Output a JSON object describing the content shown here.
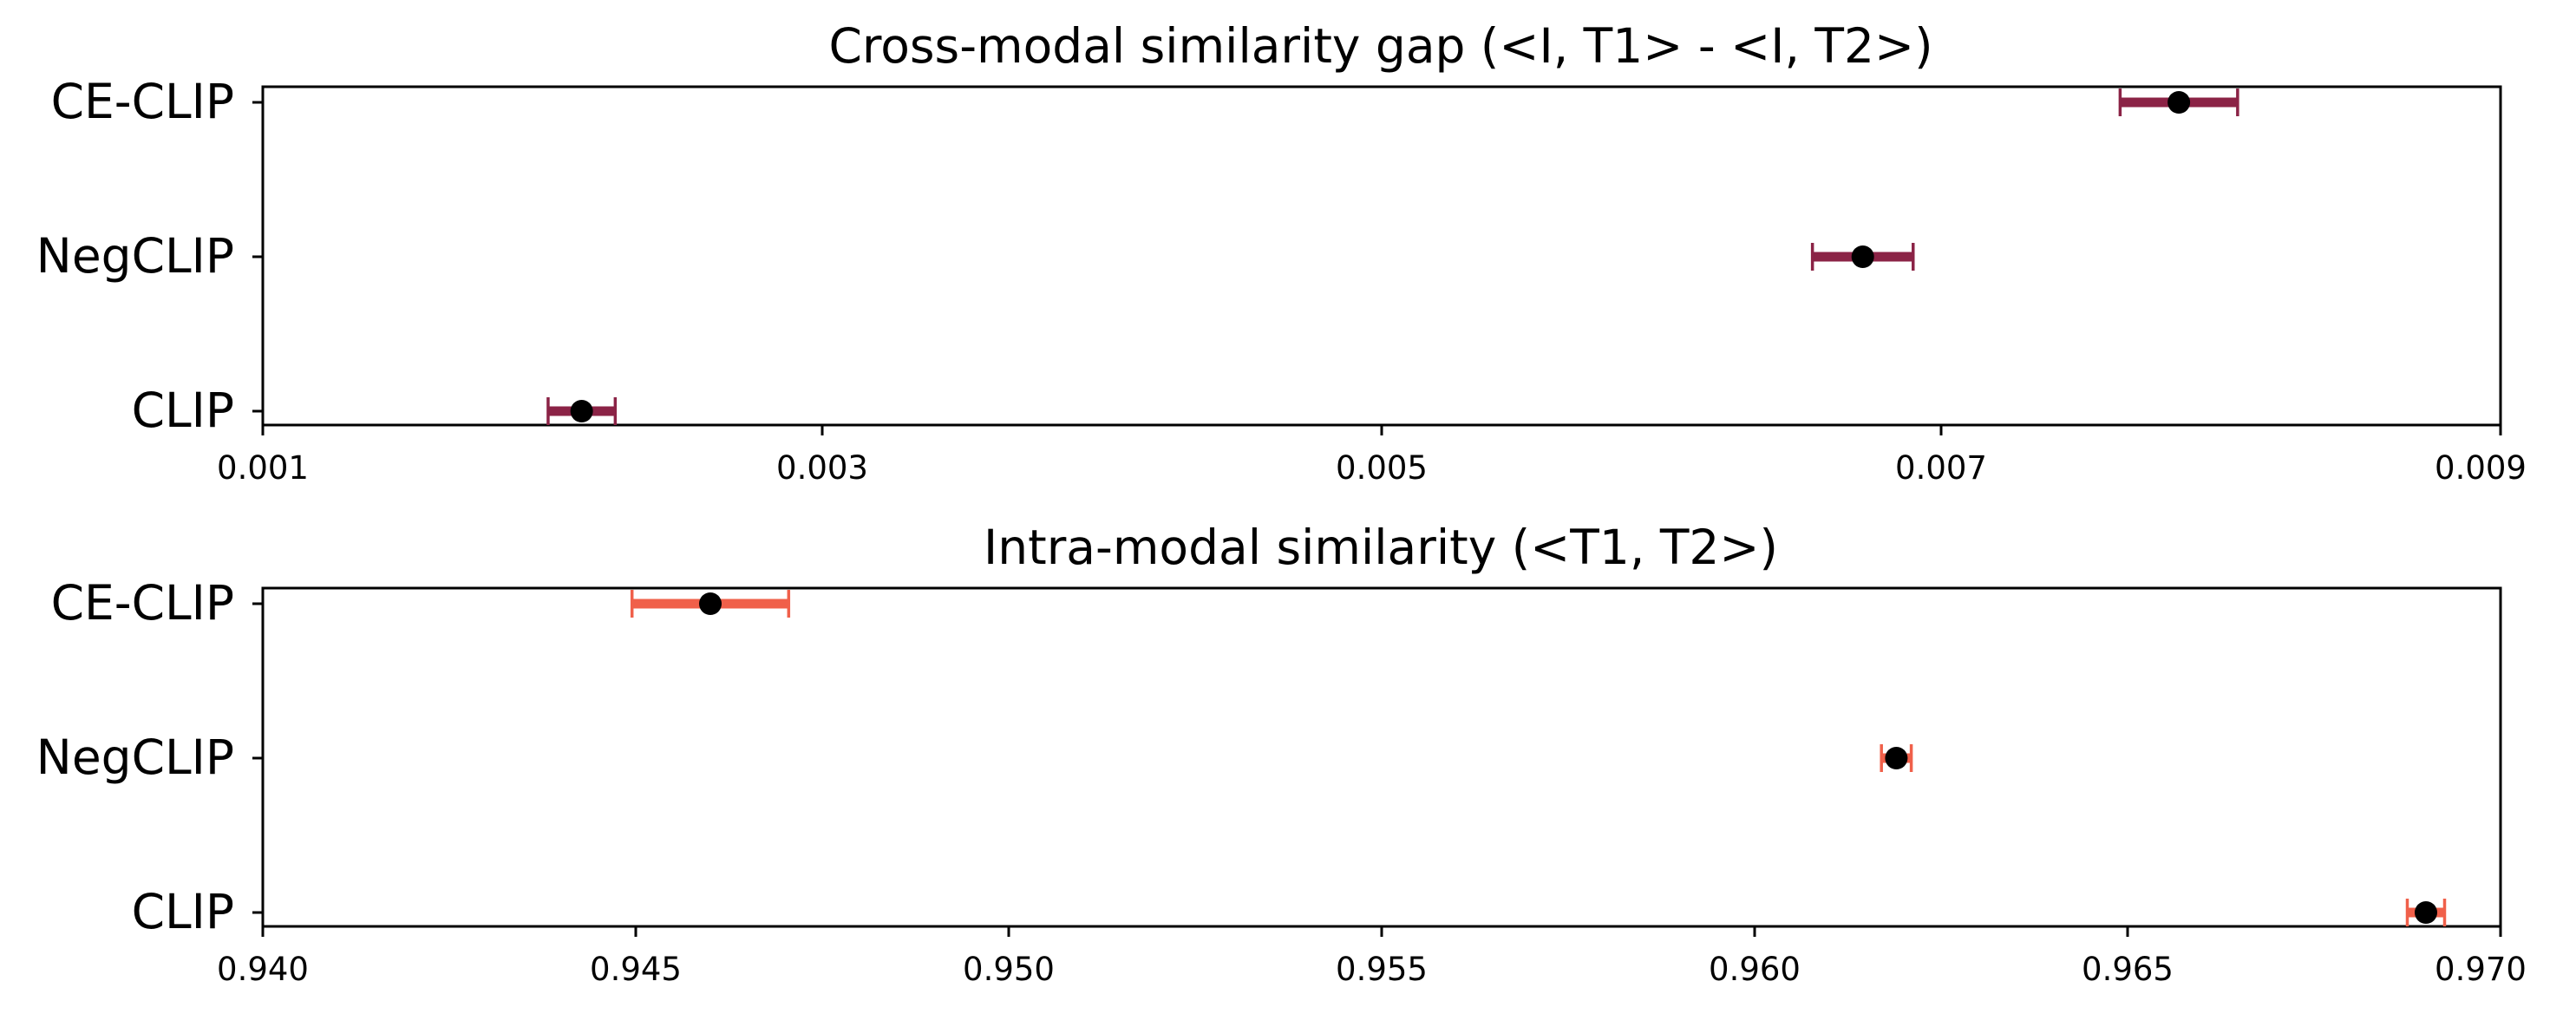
{
  "chart_data": [
    {
      "type": "errorbar",
      "title": "Cross-modal similarity gap (<I, T1> - <I, T2>)",
      "xlim": [
        0.001,
        0.009
      ],
      "xticks": [
        "0.001",
        "0.003",
        "0.005",
        "0.007",
        "0.009"
      ],
      "categories": [
        "CE-CLIP",
        "NegCLIP",
        "CLIP"
      ],
      "values": [
        0.00785,
        0.00672,
        0.00214
      ],
      "errors": [
        0.00021,
        0.00018,
        0.00012
      ],
      "bar_color": "#8b2346",
      "point_color": "#000000",
      "grid": false
    },
    {
      "type": "errorbar",
      "title": "Intra-modal similarity (<T1, T2>)",
      "xlim": [
        0.94,
        0.97
      ],
      "xticks": [
        "0.940",
        "0.945",
        "0.950",
        "0.955",
        "0.960",
        "0.965",
        "0.970"
      ],
      "categories": [
        "CE-CLIP",
        "NegCLIP",
        "CLIP"
      ],
      "values": [
        0.946,
        0.9619,
        0.969
      ],
      "errors": [
        0.00105,
        0.0002,
        0.00025
      ],
      "bar_color": "#f0604a",
      "point_color": "#000000",
      "grid": false
    }
  ]
}
